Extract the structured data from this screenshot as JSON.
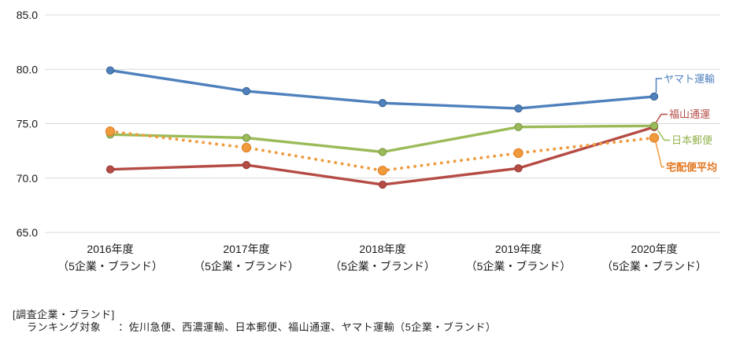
{
  "chart_data": {
    "type": "line",
    "title": "",
    "grid": "horizontal",
    "legend_position": "right-of-line-endpoints",
    "y_axis": {
      "min": 65.0,
      "max": 85.0,
      "ticks": [
        {
          "value": 85,
          "label": "85.0"
        },
        {
          "value": 80,
          "label": "80.0"
        },
        {
          "value": 75,
          "label": "75.0"
        },
        {
          "value": 70,
          "label": "70.0"
        },
        {
          "value": 65,
          "label": "65.0"
        }
      ]
    },
    "categories": [
      {
        "label": "2016年度",
        "sublabel": "（5企業・ブランド）"
      },
      {
        "label": "2017年度",
        "sublabel": "（5企業・ブランド）"
      },
      {
        "label": "2018年度",
        "sublabel": "（5企業・ブランド）"
      },
      {
        "label": "2019年度",
        "sublabel": "（5企業・ブランド）"
      },
      {
        "label": "2020年度",
        "sublabel": "（5企業・ブランド）"
      }
    ],
    "series": [
      {
        "id": "yamato-transport",
        "name": "ヤマト運輸",
        "style": "solid",
        "color": "#4F81BD",
        "marker_color": "#3A6592",
        "label_color": "#4F81BD",
        "bold_label": false,
        "values": [
          79.9,
          78.0,
          76.9,
          76.4,
          77.5
        ]
      },
      {
        "id": "fukuyama-transporting",
        "name": "福山通運",
        "style": "solid",
        "color": "#B54B45",
        "marker_color": "#943C38",
        "label_color": "#B54B45",
        "bold_label": false,
        "values": [
          70.8,
          71.2,
          69.4,
          70.9,
          74.7
        ]
      },
      {
        "id": "japan-post",
        "name": "日本郵便",
        "style": "solid",
        "color": "#9BBB59",
        "marker_color": "#7A9644",
        "label_color": "#94B24E",
        "bold_label": false,
        "values": [
          74.0,
          73.7,
          72.4,
          74.7,
          74.8
        ]
      },
      {
        "id": "delivery-average",
        "name": "宅配便平均",
        "style": "dotted",
        "color": "#EF9A3C",
        "marker_color": "#E2822B",
        "label_color": "#E2751D",
        "bold_label": true,
        "values": [
          74.3,
          72.8,
          70.7,
          72.3,
          73.7
        ]
      }
    ]
  },
  "footnote": {
    "title": "[調査企業・ブランド]",
    "ranking_label": "ランキング対象",
    "ranking_value": "：佐川急便、西濃運輸、日本郵便、福山通運、ヤマト運輸（5企業・ブランド）"
  }
}
